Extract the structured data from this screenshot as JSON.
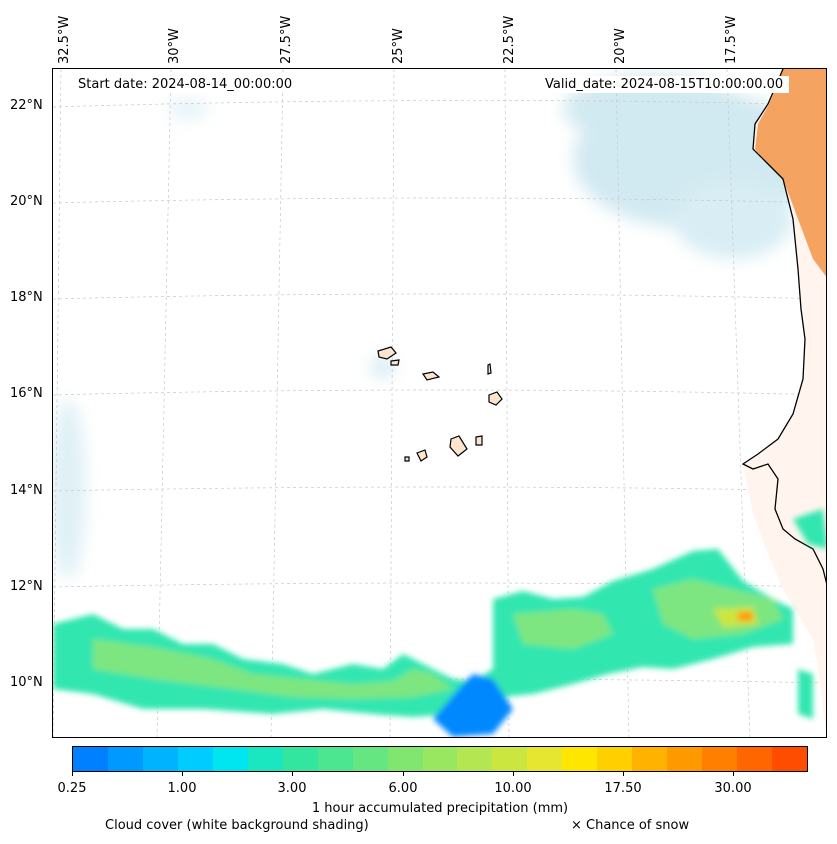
{
  "map": {
    "start_label": "Start date: 2024-08-14_00:00:00",
    "valid_label": "Valid_date: 2024-08-15T10:00:00.00",
    "lon_labels": [
      "32.5°W",
      "30°W",
      "27.5°W",
      "25°W",
      "22.5°W",
      "20°W",
      "17.5°W"
    ],
    "lat_labels": [
      "22°N",
      "20°N",
      "18°N",
      "16°N",
      "14°N",
      "12°N",
      "10°N"
    ],
    "colors": {
      "land": "#f4a460",
      "cloud": "#add8e6",
      "coast": "#000000"
    }
  },
  "colorbar": {
    "title": "1 hour accumulated precipitation (mm)",
    "tick_labels": [
      "0.25",
      "1.00",
      "3.00",
      "6.00",
      "10.00",
      "17.50",
      "30.00"
    ],
    "colors": [
      "#0080ff",
      "#0099ff",
      "#00b3ff",
      "#00ccff",
      "#00e6f0",
      "#1ae6c0",
      "#33e6a0",
      "#4de690",
      "#66e680",
      "#80e670",
      "#99e660",
      "#b3e650",
      "#cce640",
      "#e6e630",
      "#ffe600",
      "#ffd000",
      "#ffb300",
      "#ff9900",
      "#ff8000",
      "#ff6600",
      "#ff4d00"
    ]
  },
  "legend": {
    "cloud_note": "Cloud cover (white background shading)",
    "snow_note": "× Chance of snow"
  }
}
